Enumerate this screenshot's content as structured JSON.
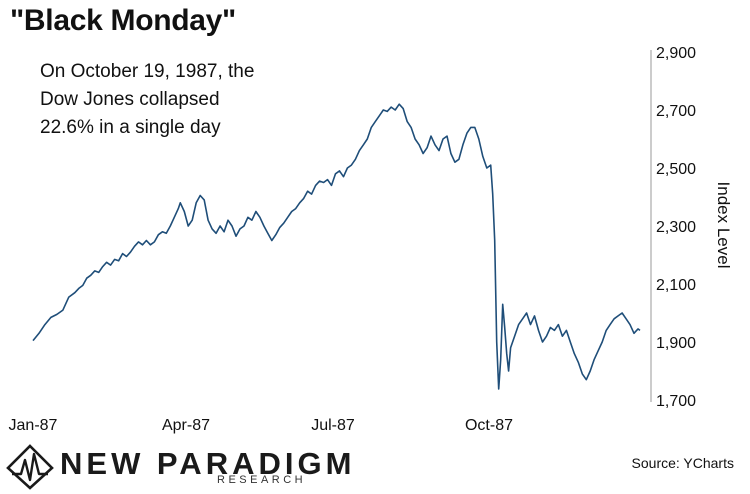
{
  "title": "\"Black Monday\"",
  "annotation": [
    "On October 19, 1987, the",
    "Dow Jones collapsed",
    "22.6% in a single day"
  ],
  "source": "Source: YCharts",
  "brand": {
    "name": "NEW PARADIGM",
    "sub": "RESEARCH",
    "logo_icon": "diamond-heartbeat-icon"
  },
  "colors": {
    "line": "#1f4e79",
    "axis": "#999999",
    "text": "#111111"
  },
  "chart_data": {
    "type": "line",
    "title": "\"Black Monday\"",
    "xlabel": "",
    "ylabel": "Index Level",
    "x_ticks": [
      "Jan-87",
      "Apr-87",
      "Jul-87",
      "Oct-87"
    ],
    "y_ticks": [
      "2,900",
      "2,700",
      "2,500",
      "2,300",
      "2,100",
      "1,900",
      "1,700"
    ],
    "ylim": [
      1700,
      2900
    ],
    "grid": false,
    "series": [
      {
        "values": [
          [
            0,
            1905
          ],
          [
            3,
            1930
          ],
          [
            6,
            1960
          ],
          [
            9,
            1985
          ],
          [
            12,
            1995
          ],
          [
            15,
            2010
          ],
          [
            18,
            2055
          ],
          [
            21,
            2070
          ],
          [
            23,
            2085
          ],
          [
            25,
            2095
          ],
          [
            27,
            2120
          ],
          [
            29,
            2130
          ],
          [
            31,
            2145
          ],
          [
            33,
            2140
          ],
          [
            35,
            2160
          ],
          [
            37,
            2175
          ],
          [
            39,
            2165
          ],
          [
            41,
            2185
          ],
          [
            43,
            2180
          ],
          [
            45,
            2205
          ],
          [
            47,
            2195
          ],
          [
            49,
            2210
          ],
          [
            51,
            2230
          ],
          [
            53,
            2245
          ],
          [
            55,
            2235
          ],
          [
            57,
            2250
          ],
          [
            59,
            2235
          ],
          [
            61,
            2245
          ],
          [
            63,
            2270
          ],
          [
            65,
            2280
          ],
          [
            67,
            2275
          ],
          [
            69,
            2300
          ],
          [
            71,
            2330
          ],
          [
            73,
            2360
          ],
          [
            74,
            2380
          ],
          [
            76,
            2350
          ],
          [
            78,
            2300
          ],
          [
            80,
            2320
          ],
          [
            82,
            2380
          ],
          [
            84,
            2405
          ],
          [
            86,
            2390
          ],
          [
            88,
            2320
          ],
          [
            90,
            2290
          ],
          [
            92,
            2275
          ],
          [
            94,
            2300
          ],
          [
            96,
            2280
          ],
          [
            98,
            2320
          ],
          [
            100,
            2300
          ],
          [
            102,
            2265
          ],
          [
            104,
            2290
          ],
          [
            106,
            2300
          ],
          [
            108,
            2330
          ],
          [
            110,
            2320
          ],
          [
            112,
            2350
          ],
          [
            114,
            2330
          ],
          [
            116,
            2300
          ],
          [
            118,
            2275
          ],
          [
            120,
            2250
          ],
          [
            122,
            2270
          ],
          [
            124,
            2295
          ],
          [
            126,
            2310
          ],
          [
            128,
            2330
          ],
          [
            130,
            2350
          ],
          [
            132,
            2360
          ],
          [
            134,
            2380
          ],
          [
            136,
            2395
          ],
          [
            138,
            2420
          ],
          [
            140,
            2410
          ],
          [
            142,
            2440
          ],
          [
            144,
            2455
          ],
          [
            146,
            2450
          ],
          [
            148,
            2460
          ],
          [
            150,
            2440
          ],
          [
            152,
            2480
          ],
          [
            154,
            2490
          ],
          [
            156,
            2470
          ],
          [
            158,
            2500
          ],
          [
            160,
            2510
          ],
          [
            162,
            2530
          ],
          [
            164,
            2560
          ],
          [
            166,
            2580
          ],
          [
            168,
            2600
          ],
          [
            170,
            2640
          ],
          [
            172,
            2660
          ],
          [
            174,
            2680
          ],
          [
            176,
            2700
          ],
          [
            178,
            2695
          ],
          [
            180,
            2710
          ],
          [
            182,
            2700
          ],
          [
            184,
            2720
          ],
          [
            186,
            2705
          ],
          [
            188,
            2660
          ],
          [
            190,
            2640
          ],
          [
            192,
            2600
          ],
          [
            194,
            2580
          ],
          [
            196,
            2550
          ],
          [
            198,
            2570
          ],
          [
            200,
            2610
          ],
          [
            202,
            2580
          ],
          [
            204,
            2560
          ],
          [
            206,
            2600
          ],
          [
            208,
            2610
          ],
          [
            210,
            2550
          ],
          [
            212,
            2520
          ],
          [
            214,
            2530
          ],
          [
            216,
            2580
          ],
          [
            218,
            2620
          ],
          [
            220,
            2640
          ],
          [
            222,
            2640
          ],
          [
            224,
            2600
          ],
          [
            226,
            2540
          ],
          [
            228,
            2500
          ],
          [
            230,
            2510
          ],
          [
            231,
            2410
          ],
          [
            232,
            2250
          ],
          [
            233,
            1900
          ],
          [
            234,
            1738
          ],
          [
            235,
            1840
          ],
          [
            236,
            2030
          ],
          [
            237,
            1950
          ],
          [
            238,
            1860
          ],
          [
            239,
            1800
          ],
          [
            240,
            1880
          ],
          [
            242,
            1920
          ],
          [
            244,
            1960
          ],
          [
            246,
            1980
          ],
          [
            248,
            2000
          ],
          [
            250,
            1960
          ],
          [
            252,
            1990
          ],
          [
            254,
            1940
          ],
          [
            256,
            1900
          ],
          [
            258,
            1920
          ],
          [
            260,
            1950
          ],
          [
            262,
            1940
          ],
          [
            264,
            1960
          ],
          [
            266,
            1920
          ],
          [
            268,
            1940
          ],
          [
            270,
            1900
          ],
          [
            272,
            1860
          ],
          [
            274,
            1830
          ],
          [
            276,
            1790
          ],
          [
            278,
            1770
          ],
          [
            280,
            1800
          ],
          [
            282,
            1840
          ],
          [
            284,
            1870
          ],
          [
            286,
            1900
          ],
          [
            288,
            1940
          ],
          [
            290,
            1960
          ],
          [
            292,
            1980
          ],
          [
            294,
            1990
          ],
          [
            296,
            2000
          ],
          [
            298,
            1980
          ],
          [
            300,
            1960
          ],
          [
            302,
            1930
          ],
          [
            304,
            1945
          ],
          [
            305,
            1940
          ]
        ]
      }
    ]
  }
}
